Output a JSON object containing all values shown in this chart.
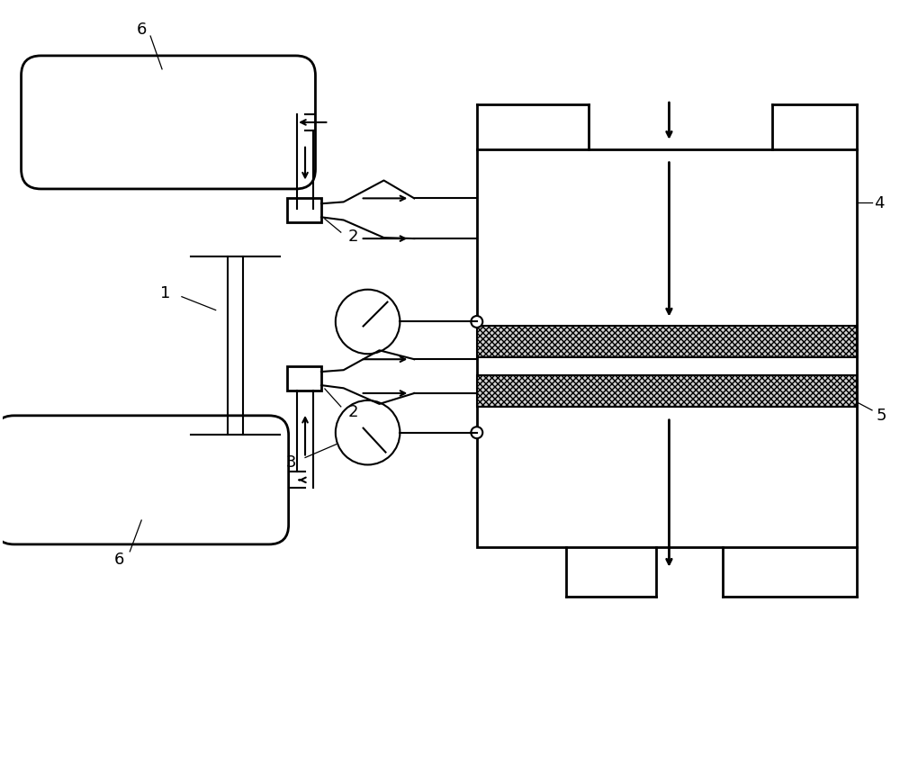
{
  "bg_color": "#ffffff",
  "line_color": "#000000",
  "line_width": 1.5,
  "fig_width": 10.0,
  "fig_height": 8.7,
  "label_fontsize": 13
}
